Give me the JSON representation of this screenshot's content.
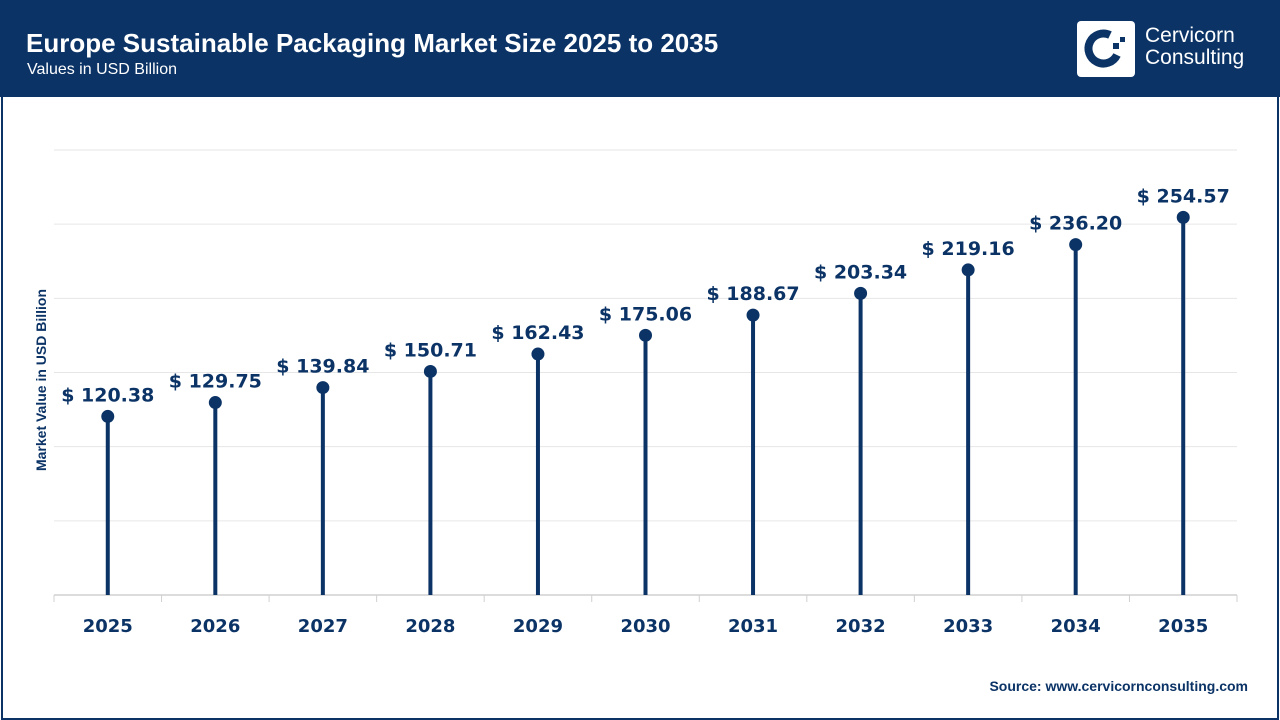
{
  "header": {
    "title": "Europe Sustainable Packaging Market Size 2025 to 2035",
    "subtitle": "Values in USD Billion",
    "logo_text": "Cervicorn Consulting",
    "logo_line1": "Cervicorn",
    "logo_line2": "Consulting"
  },
  "source": "Source: www.cervicornconsulting.com",
  "colors": {
    "brand": "#0b3366",
    "grid": "#e6e6e6",
    "background": "#ffffff"
  },
  "chart_data": {
    "type": "lollipop",
    "title": "Europe Sustainable Packaging Market Size 2025 to 2035",
    "subtitle": "Values in USD Billion",
    "xlabel": "",
    "ylabel": "Market Value in USD Billion",
    "ylim": [
      0,
      300
    ],
    "grid": true,
    "value_prefix": "$ ",
    "categories": [
      "2025",
      "2026",
      "2027",
      "2028",
      "2029",
      "2030",
      "2031",
      "2032",
      "2033",
      "2034",
      "2035"
    ],
    "values": [
      120.38,
      129.75,
      139.84,
      150.71,
      162.43,
      175.06,
      188.67,
      203.34,
      219.16,
      236.2,
      254.57
    ],
    "labels": [
      "$ 120.38",
      "$ 129.75",
      "$ 139.84",
      "$ 150.71",
      "$ 162.43",
      "$ 175.06",
      "$ 188.67",
      "$ 203.34",
      "$ 219.16",
      "$ 236.20",
      "$ 254.57"
    ]
  }
}
